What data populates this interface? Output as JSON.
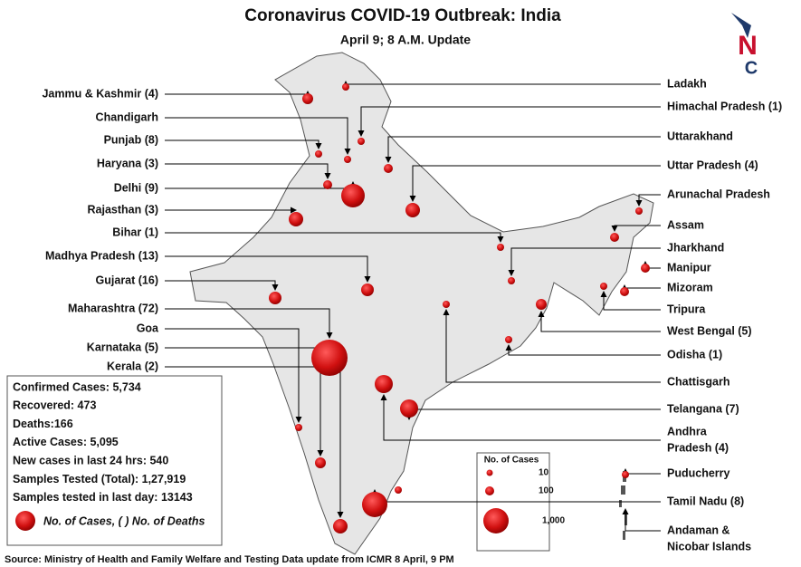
{
  "header": {
    "title": "Coronavirus COVID-19 Outbreak: India",
    "subtitle": "April 9; 8 A.M. Update"
  },
  "logo": {
    "top": "N",
    "bottom": "C"
  },
  "left_labels": [
    "Jammu & Kashmir (4)",
    "Chandigarh",
    "Punjab (8)",
    "Haryana (3)",
    "Delhi (9)",
    "Rajasthan (3)",
    "Bihar (1)",
    "Madhya Pradesh (13)",
    "Gujarat (16)",
    "Maharashtra (72)",
    "Goa",
    "Karnataka (5)",
    "Kerala (2)"
  ],
  "right_labels": [
    [
      "Ladakh"
    ],
    [
      "Himachal Pradesh (1)"
    ],
    [
      "Uttarakhand"
    ],
    [
      "Uttar Pradesh (4)"
    ],
    [
      "Arunachal Pradesh"
    ],
    [
      "Assam"
    ],
    [
      "Jharkhand"
    ],
    [
      "Manipur"
    ],
    [
      "Mizoram"
    ],
    [
      "Tripura"
    ],
    [
      "West Bengal (5)"
    ],
    [
      "Odisha (1)"
    ],
    [
      "Chattisgarh"
    ],
    [
      "Telangana (7)"
    ],
    [
      "Andhra",
      "Pradesh (4)"
    ],
    [
      "Puducherry"
    ],
    [
      "Tamil Nadu (8)"
    ],
    [
      "Andaman &",
      "Nicobar Islands"
    ]
  ],
  "stats": [
    "Confirmed Cases: 5,734",
    "Recovered: 473",
    "Deaths:166",
    "Active Cases: 5,095",
    "New cases in last 24 hrs: 540",
    "Samples Tested (Total):  1,27,919",
    "Samples tested in last day: 13143"
  ],
  "stats_legend": "No. of Cases, ( ) No. of  Deaths",
  "legend": {
    "title": "No. of Cases",
    "items": [
      "10",
      "100",
      "1,000"
    ]
  },
  "source": "Source: Ministry of Health and Family Welfare and Testing Data update from ICMR 8 April, 9 PM"
}
